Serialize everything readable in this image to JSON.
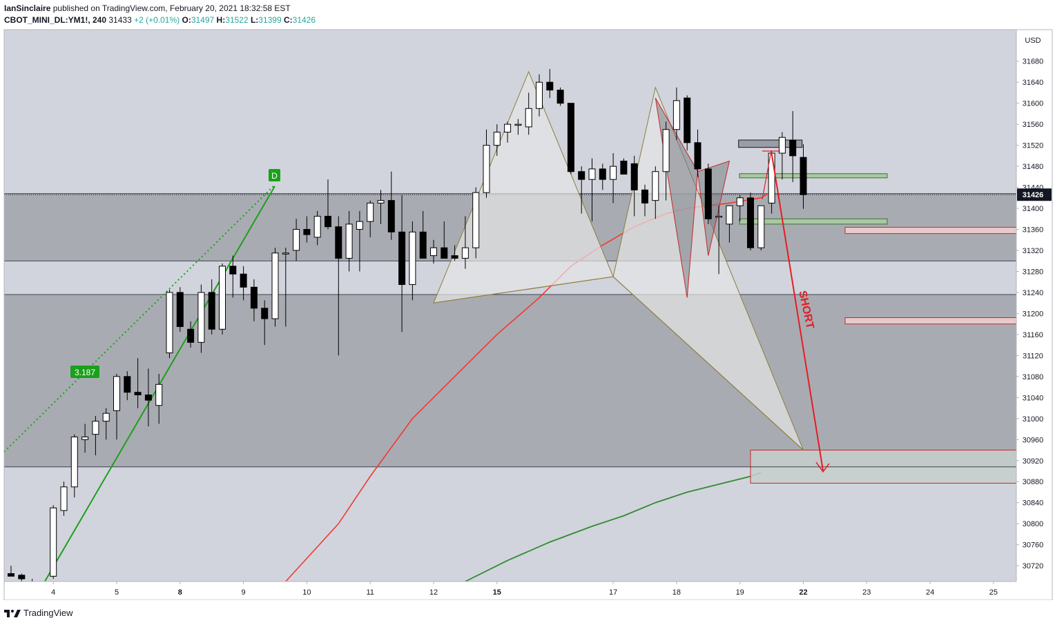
{
  "header": {
    "author": "IanSinclaire",
    "published_text": "published on TradingView.com, February 20, 2021 18:32:58 EST",
    "symbol": "CBOT_MINI_DL:YM1!, 240",
    "last": "31433",
    "change": "+2 (+0.01%)",
    "o_label": "O:",
    "o": "31497",
    "h_label": "H:",
    "h": "31522",
    "l_label": "L:",
    "l": "31399",
    "c_label": "C:",
    "c": "31426"
  },
  "footer": {
    "brand": "TradingView",
    "logo_icon": "tradingview-logo-icon"
  },
  "colors": {
    "bull_body": "#ffffff",
    "bear_body": "#000000",
    "candle_border": "#000000",
    "ema_red": "#f0392f",
    "ema_green": "#2e8b2e",
    "trend_green": "#1aa01a",
    "pattern_fill": "#e6e6e6",
    "pattern_stroke": "#8b7d3a",
    "short_arrow": "#e51c23",
    "zone_green": "#a8c8a0",
    "zone_red_stroke": "#c62828",
    "price_badge_bg": "#131722"
  },
  "chart_data": {
    "type": "candlestick",
    "timeframe": "240",
    "currency_label": "USD",
    "ylim": [
      30690,
      31740
    ],
    "y_ticks": [
      30720,
      30760,
      30800,
      30840,
      30880,
      30920,
      30960,
      31000,
      31040,
      31080,
      31120,
      31160,
      31200,
      31240,
      31280,
      31320,
      31360,
      31400,
      31440,
      31480,
      31520,
      31560,
      31600,
      31640,
      31680
    ],
    "x_ticks": [
      {
        "label": "4",
        "bar": 4,
        "bold": false
      },
      {
        "label": "5",
        "bar": 10,
        "bold": false
      },
      {
        "label": "8",
        "bar": 16,
        "bold": true
      },
      {
        "label": "9",
        "bar": 22,
        "bold": false
      },
      {
        "label": "10",
        "bar": 28,
        "bold": false
      },
      {
        "label": "11",
        "bar": 34,
        "bold": false
      },
      {
        "label": "12",
        "bar": 40,
        "bold": false
      },
      {
        "label": "15",
        "bar": 46,
        "bold": true
      },
      {
        "label": "17",
        "bar": 57,
        "bold": false
      },
      {
        "label": "18",
        "bar": 63,
        "bold": false
      },
      {
        "label": "19",
        "bar": 69,
        "bold": false
      },
      {
        "label": "22",
        "bar": 75,
        "bold": true
      },
      {
        "label": "23",
        "bar": 81,
        "bold": false
      },
      {
        "label": "24",
        "bar": 87,
        "bold": false
      },
      {
        "label": "25",
        "bar": 93,
        "bold": false
      }
    ],
    "candles": [
      [
        30705,
        30720,
        30700,
        30700
      ],
      [
        30702,
        30705,
        30690,
        30695
      ],
      [
        30690,
        30695,
        30670,
        30675
      ],
      [
        30675,
        30680,
        30660,
        30665
      ],
      [
        30700,
        30835,
        30695,
        30830
      ],
      [
        30825,
        30880,
        30815,
        30870
      ],
      [
        30870,
        30970,
        30850,
        30965
      ],
      [
        30960,
        30990,
        30935,
        30965
      ],
      [
        30970,
        31005,
        30930,
        30995
      ],
      [
        30995,
        31020,
        30960,
        31010
      ],
      [
        31015,
        31085,
        30960,
        31080
      ],
      [
        31080,
        31090,
        31035,
        31050
      ],
      [
        31050,
        31115,
        31020,
        31045
      ],
      [
        31045,
        31095,
        30985,
        31035
      ],
      [
        31025,
        31085,
        30990,
        31065
      ],
      [
        31125,
        31245,
        31115,
        31240
      ],
      [
        31240,
        31250,
        31165,
        31175
      ],
      [
        31170,
        31185,
        31135,
        31145
      ],
      [
        31145,
        31255,
        31125,
        31240
      ],
      [
        31240,
        31265,
        31160,
        31170
      ],
      [
        31170,
        31295,
        31160,
        31290
      ],
      [
        31290,
        31310,
        31230,
        31275
      ],
      [
        31275,
        31290,
        31225,
        31250
      ],
      [
        31250,
        31265,
        31185,
        31210
      ],
      [
        31210,
        31225,
        31140,
        31190
      ],
      [
        31190,
        31325,
        31175,
        31315
      ],
      [
        31315,
        31325,
        31175,
        31315
      ],
      [
        31320,
        31380,
        31300,
        31360
      ],
      [
        31360,
        31385,
        31335,
        31350
      ],
      [
        31345,
        31395,
        31330,
        31385
      ],
      [
        31385,
        31455,
        31360,
        31365
      ],
      [
        31365,
        31385,
        31120,
        31305
      ],
      [
        31305,
        31395,
        31280,
        31370
      ],
      [
        31360,
        31395,
        31280,
        31375
      ],
      [
        31375,
        31415,
        31345,
        31410
      ],
      [
        31410,
        31435,
        31370,
        31415
      ],
      [
        31415,
        31470,
        31340,
        31355
      ],
      [
        31355,
        31425,
        31165,
        31255
      ],
      [
        31255,
        31375,
        31225,
        31355
      ],
      [
        31355,
        31395,
        31305,
        31305
      ],
      [
        31310,
        31340,
        31295,
        31325
      ],
      [
        31325,
        31375,
        31305,
        31305
      ],
      [
        31310,
        31330,
        31300,
        31305
      ],
      [
        31305,
        31385,
        31285,
        31325
      ],
      [
        31325,
        31440,
        31305,
        31430
      ],
      [
        31430,
        31550,
        31420,
        31520
      ],
      [
        31520,
        31560,
        31500,
        31545
      ],
      [
        31545,
        31565,
        31525,
        31560
      ],
      [
        31560,
        31570,
        31540,
        31560
      ],
      [
        31555,
        31620,
        31540,
        31590
      ],
      [
        31590,
        31655,
        31575,
        31640
      ],
      [
        31640,
        31665,
        31610,
        31625
      ],
      [
        31625,
        31630,
        31595,
        31600
      ],
      [
        31600,
        31600,
        31465,
        31470
      ],
      [
        31470,
        31480,
        31390,
        31455
      ],
      [
        31455,
        31495,
        31375,
        31475
      ],
      [
        31475,
        31485,
        31435,
        31455
      ],
      [
        31455,
        31505,
        31410,
        31480
      ],
      [
        31490,
        31495,
        31465,
        31465
      ],
      [
        31485,
        31500,
        31385,
        31435
      ],
      [
        31435,
        31445,
        31385,
        31410
      ],
      [
        31415,
        31480,
        31380,
        31470
      ],
      [
        31470,
        31565,
        31415,
        31550
      ],
      [
        31550,
        31630,
        31530,
        31605
      ],
      [
        31610,
        31615,
        31510,
        31525
      ],
      [
        31525,
        31550,
        31460,
        31475
      ],
      [
        31475,
        31485,
        31370,
        31380
      ],
      [
        31385,
        31405,
        31275,
        31385
      ],
      [
        31370,
        31400,
        31335,
        31405
      ],
      [
        31405,
        31425,
        31375,
        31420
      ],
      [
        31420,
        31430,
        31320,
        31325
      ],
      [
        31325,
        31405,
        31320,
        31405
      ],
      [
        31410,
        31510,
        31390,
        31505
      ],
      [
        31505,
        31545,
        31455,
        31535
      ],
      [
        31530,
        31585,
        31450,
        31500
      ],
      [
        31497,
        31522,
        31399,
        31426
      ]
    ],
    "bar_x_start": 16,
    "bar_spacing": 15.3,
    "price_badge": "31426",
    "short_label": "SHORT",
    "fib_badge": "3.187",
    "d_badge": "D",
    "zones": [
      {
        "type": "gray-band",
        "from": 31300,
        "to": 31428
      },
      {
        "type": "gray-band",
        "from": 30908,
        "to": 31236
      },
      {
        "type": "red-box-target",
        "from": 30877,
        "to": 30940
      },
      {
        "type": "green-line-zone",
        "from": 31458,
        "to": 31466
      },
      {
        "type": "green-line-zone",
        "from": 31370,
        "to": 31380
      },
      {
        "type": "red-line-zone",
        "from": 31352,
        "to": 31364
      },
      {
        "type": "red-line-zone",
        "from": 31180,
        "to": 31192
      }
    ]
  }
}
